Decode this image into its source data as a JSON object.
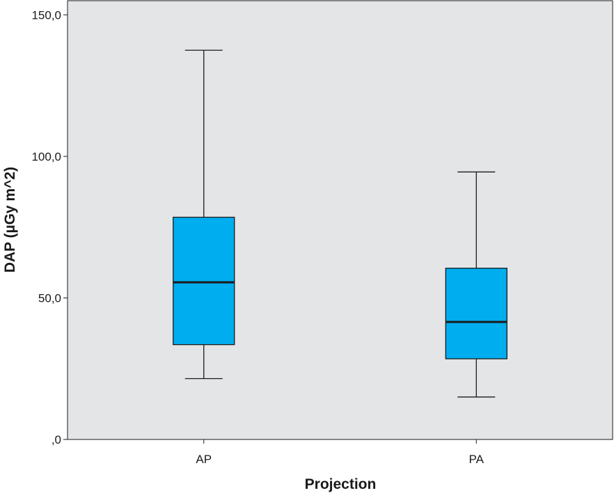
{
  "chart_data": {
    "type": "boxplot",
    "xlabel": "Projection",
    "ylabel": "DAP (µGy m^2)",
    "ylim": [
      0,
      155
    ],
    "yticks": [
      0,
      50,
      100,
      150
    ],
    "ytick_labels": [
      ",0",
      "50,0",
      "100,0",
      "150,0"
    ],
    "categories": [
      "AP",
      "PA"
    ],
    "boxes": [
      {
        "category": "AP",
        "whisker_low": 21.5,
        "q1": 33.5,
        "median": 55.5,
        "q3": 78.5,
        "whisker_high": 137.5
      },
      {
        "category": "PA",
        "whisker_low": 15.0,
        "q1": 28.5,
        "median": 41.5,
        "q3": 60.5,
        "whisker_high": 94.5
      }
    ],
    "grid": false,
    "colors": {
      "plot_background": "#e4e5e7",
      "box_fill": "#00adef",
      "line": "#1a1a1a"
    }
  }
}
